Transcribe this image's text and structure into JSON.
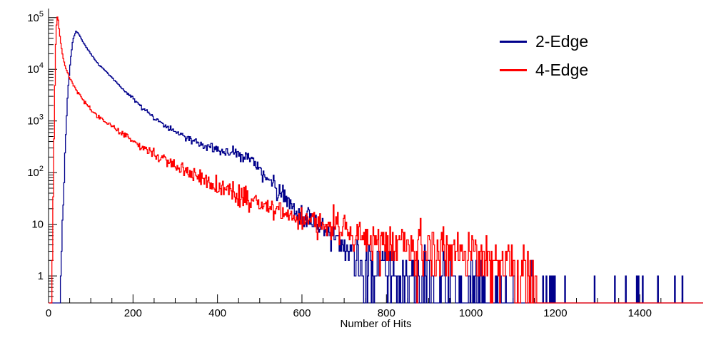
{
  "chart_data": {
    "type": "line",
    "subtype": "step-histogram",
    "title": "",
    "xlabel": "Number of Hits",
    "ylabel": "",
    "y_scale": "log",
    "grid": false,
    "xlim": [
      0,
      1550
    ],
    "ylim": [
      0.3,
      150000
    ],
    "x_major_ticks": [
      0,
      200,
      400,
      600,
      800,
      1000,
      1200,
      1400
    ],
    "x_minor_step": 50,
    "y_major_ticks": [
      {
        "value": 1,
        "label": "1"
      },
      {
        "value": 10,
        "label": "10"
      },
      {
        "value": 100,
        "label": "10^2"
      },
      {
        "value": 1000,
        "label": "10^3"
      },
      {
        "value": 10000,
        "label": "10^4"
      },
      {
        "value": 100000,
        "label": "10^5"
      }
    ],
    "legend": {
      "position": "top-right",
      "entries": [
        {
          "label": "2-Edge",
          "color": "#00008b"
        },
        {
          "label": "4-Edge",
          "color": "#ff0000"
        }
      ]
    },
    "bin_width": 2,
    "noise_seed": 42,
    "series": [
      {
        "name": "2-Edge",
        "color": "#00008b",
        "peak": {
          "x": 65,
          "y": 55000
        },
        "envelope": [
          [
            28,
            0.3
          ],
          [
            34,
            20
          ],
          [
            40,
            400
          ],
          [
            46,
            4000
          ],
          [
            52,
            15000
          ],
          [
            58,
            38000
          ],
          [
            65,
            55000
          ],
          [
            72,
            48000
          ],
          [
            80,
            36000
          ],
          [
            90,
            26000
          ],
          [
            100,
            20000
          ],
          [
            120,
            12000
          ],
          [
            150,
            7000
          ],
          [
            175,
            4200
          ],
          [
            200,
            2700
          ],
          [
            225,
            1700
          ],
          [
            250,
            1150
          ],
          [
            275,
            820
          ],
          [
            300,
            620
          ],
          [
            325,
            480
          ],
          [
            350,
            380
          ],
          [
            375,
            310
          ],
          [
            400,
            275
          ],
          [
            425,
            255
          ],
          [
            450,
            235
          ],
          [
            470,
            205
          ],
          [
            485,
            165
          ],
          [
            500,
            120
          ],
          [
            515,
            85
          ],
          [
            530,
            60
          ],
          [
            550,
            40
          ],
          [
            570,
            26
          ],
          [
            590,
            18
          ],
          [
            610,
            14
          ],
          [
            640,
            10
          ],
          [
            670,
            6
          ],
          [
            700,
            4
          ],
          [
            730,
            2.5
          ],
          [
            760,
            1.8
          ],
          [
            800,
            1.3
          ],
          [
            850,
            0.9
          ],
          [
            900,
            0.7
          ],
          [
            950,
            0.55
          ],
          [
            1000,
            0.4
          ],
          [
            1060,
            0.3
          ],
          [
            1120,
            0.22
          ],
          [
            1200,
            0.15
          ],
          [
            1300,
            0.1
          ],
          [
            1400,
            0.07
          ],
          [
            1520,
            0.05
          ]
        ]
      },
      {
        "name": "4-Edge",
        "color": "#ff0000",
        "peak": {
          "x": 20,
          "y": 110000
        },
        "envelope": [
          [
            8,
            0.3
          ],
          [
            11,
            30
          ],
          [
            14,
            2000
          ],
          [
            17,
            30000
          ],
          [
            20,
            110000
          ],
          [
            23,
            90000
          ],
          [
            26,
            50000
          ],
          [
            30,
            28000
          ],
          [
            35,
            16000
          ],
          [
            40,
            11000
          ],
          [
            50,
            6800
          ],
          [
            60,
            4800
          ],
          [
            70,
            3500
          ],
          [
            80,
            2700
          ],
          [
            90,
            2100
          ],
          [
            100,
            1700
          ],
          [
            120,
            1150
          ],
          [
            150,
            780
          ],
          [
            175,
            560
          ],
          [
            200,
            420
          ],
          [
            225,
            310
          ],
          [
            250,
            230
          ],
          [
            275,
            175
          ],
          [
            300,
            135
          ],
          [
            325,
            105
          ],
          [
            350,
            85
          ],
          [
            375,
            65
          ],
          [
            400,
            52
          ],
          [
            430,
            42
          ],
          [
            460,
            33
          ],
          [
            490,
            27
          ],
          [
            520,
            22
          ],
          [
            550,
            18
          ],
          [
            580,
            15
          ],
          [
            610,
            13
          ],
          [
            640,
            11
          ],
          [
            670,
            9.5
          ],
          [
            700,
            8
          ],
          [
            730,
            7
          ],
          [
            760,
            6
          ],
          [
            800,
            5.2
          ],
          [
            840,
            4.6
          ],
          [
            880,
            4.2
          ],
          [
            920,
            3.8
          ],
          [
            960,
            3.4
          ],
          [
            1000,
            3
          ],
          [
            1040,
            2.6
          ],
          [
            1080,
            2.1
          ],
          [
            1110,
            1.5
          ],
          [
            1140,
            0.8
          ],
          [
            1160,
            0.3
          ]
        ]
      }
    ]
  }
}
